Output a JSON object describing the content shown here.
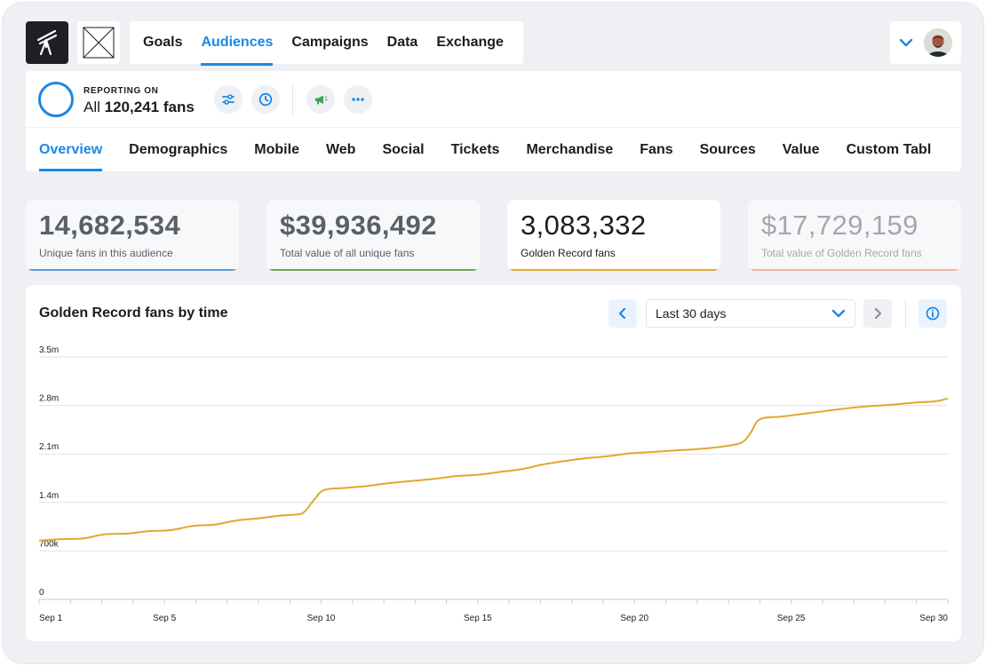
{
  "nav": {
    "items": [
      "Goals",
      "Audiences",
      "Campaigns",
      "Data",
      "Exchange"
    ],
    "active": "Audiences"
  },
  "reporting": {
    "label": "REPORTING ON",
    "prefix": "All",
    "count": "120,241",
    "suffix": "fans"
  },
  "tabs": {
    "items": [
      "Overview",
      "Demographics",
      "Mobile",
      "Web",
      "Social",
      "Tickets",
      "Merchandise",
      "Fans",
      "Sources",
      "Value",
      "Custom Tabl"
    ],
    "active": "Overview"
  },
  "stats": [
    {
      "value": "14,682,534",
      "label": "Unique fans in this audience",
      "color": "#5b9bd5"
    },
    {
      "value": "$39,936,492",
      "label": "Total value of all unique fans",
      "color": "#6aa84f"
    },
    {
      "value": "3,083,332",
      "label": "Golden Record fans",
      "color": "#e0a82e"
    },
    {
      "value": "$17,729,159",
      "label": "Total value of Golden Record fans",
      "color": "#f4b49a"
    }
  ],
  "chart_panel": {
    "title": "Golden Record fans by time",
    "range_value": "Last 30 days"
  },
  "colors": {
    "accent": "#1b87e6",
    "line": "#e0a82e"
  },
  "chart_data": {
    "type": "line",
    "title": "Golden Record fans by time",
    "xlabel": "",
    "ylabel": "",
    "ylim": [
      0,
      3500000
    ],
    "y_ticks": [
      0,
      700000,
      1400000,
      2100000,
      2800000,
      3500000
    ],
    "y_tick_labels": [
      "0",
      "700k",
      "1.4m",
      "2.1m",
      "2.8m",
      "3.5m"
    ],
    "x_ticks": [
      1,
      5,
      10,
      15,
      20,
      25,
      30
    ],
    "x_tick_labels": [
      "Sep 1",
      "Sep 5",
      "Sep 10",
      "Sep 15",
      "Sep 20",
      "Sep 25",
      "Sep 30"
    ],
    "grid": true,
    "series": [
      {
        "name": "Golden Record fans",
        "x": [
          1,
          1.7,
          2.4,
          3.1,
          3.8,
          4.5,
          5.2,
          5.9,
          6.6,
          7.3,
          8.0,
          8.7,
          9.3,
          9.5,
          9.8,
          10.1,
          10.8,
          11.5,
          12.2,
          12.9,
          13.6,
          14.3,
          15.0,
          15.7,
          16.4,
          17.1,
          17.8,
          18.5,
          19.2,
          19.9,
          20.6,
          21.3,
          22.0,
          22.7,
          23.4,
          23.7,
          24.0,
          24.7,
          25.4,
          26.1,
          26.8,
          27.5,
          28.2,
          28.9,
          29.6,
          30
        ],
        "values": [
          850000,
          870000,
          880000,
          940000,
          950000,
          985000,
          1000000,
          1060000,
          1080000,
          1140000,
          1170000,
          1210000,
          1230000,
          1280000,
          1450000,
          1580000,
          1610000,
          1640000,
          1680000,
          1710000,
          1740000,
          1780000,
          1800000,
          1840000,
          1880000,
          1950000,
          2000000,
          2040000,
          2070000,
          2110000,
          2130000,
          2150000,
          2170000,
          2200000,
          2260000,
          2400000,
          2600000,
          2640000,
          2680000,
          2720000,
          2760000,
          2790000,
          2810000,
          2840000,
          2860000,
          2900000
        ]
      }
    ]
  }
}
